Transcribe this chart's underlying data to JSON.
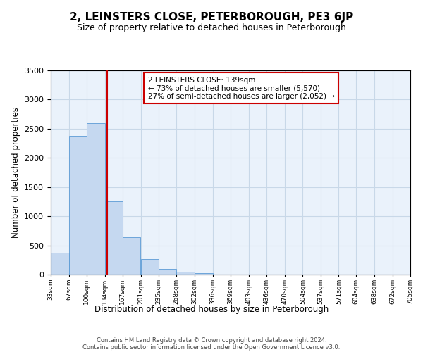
{
  "title": "2, LEINSTERS CLOSE, PETERBOROUGH, PE3 6JP",
  "subtitle": "Size of property relative to detached houses in Peterborough",
  "xlabel": "Distribution of detached houses by size in Peterborough",
  "ylabel": "Number of detached properties",
  "bins": [
    33,
    67,
    100,
    134,
    167,
    201,
    235,
    268,
    302,
    336,
    369,
    403,
    436,
    470,
    504,
    537,
    571,
    604,
    638,
    672,
    705
  ],
  "values": [
    380,
    2380,
    2600,
    1250,
    640,
    260,
    100,
    50,
    30,
    0,
    0,
    0,
    0,
    0,
    0,
    0,
    0,
    0,
    0,
    0
  ],
  "bar_color": "#c5d8f0",
  "bar_edge_color": "#5b9bd5",
  "vline_x": 139,
  "vline_color": "#cc0000",
  "ylim": [
    0,
    3500
  ],
  "yticks": [
    0,
    500,
    1000,
    1500,
    2000,
    2500,
    3000,
    3500
  ],
  "annotation_title": "2 LEINSTERS CLOSE: 139sqm",
  "annotation_line1": "← 73% of detached houses are smaller (5,570)",
  "annotation_line2": "27% of semi-detached houses are larger (2,052) →",
  "annotation_box_color": "#ffffff",
  "annotation_box_edge": "#cc0000",
  "footer1": "Contains HM Land Registry data © Crown copyright and database right 2024.",
  "footer2": "Contains public sector information licensed under the Open Government Licence v3.0.",
  "background_color": "#ffffff",
  "axes_bg_color": "#eaf2fb",
  "grid_color": "#c8d8e8"
}
